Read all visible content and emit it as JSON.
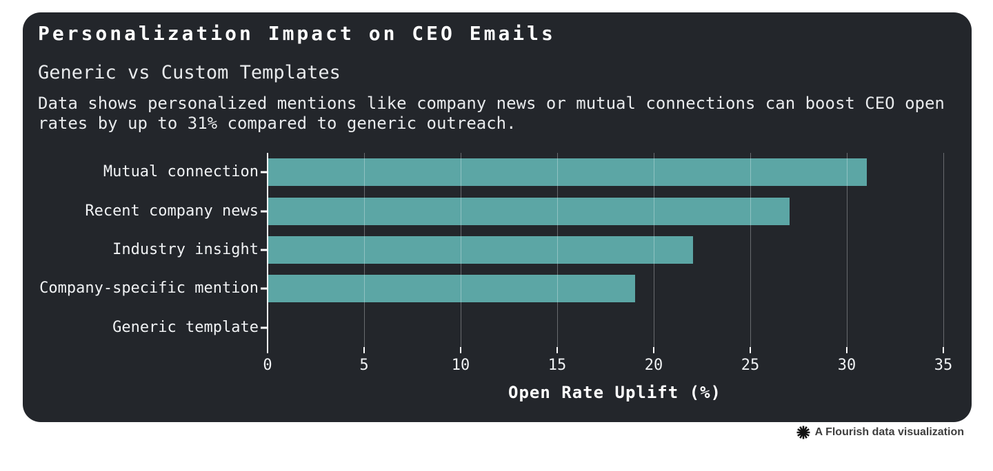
{
  "card": {
    "title": "Personalization Impact on CEO Emails",
    "subtitle": "Generic vs Custom Templates",
    "description": "Data shows personalized mentions like company news or mutual connections can boost CEO open rates by up to 31% compared to generic outreach."
  },
  "chart_data": {
    "type": "bar",
    "orientation": "horizontal",
    "title": "Personalization Impact on CEO Emails",
    "subtitle": "Generic vs Custom Templates",
    "categories": [
      "Mutual connection",
      "Recent company news",
      "Industry insight",
      "Company-specific mention",
      "Generic template"
    ],
    "values": [
      31,
      27,
      22,
      19,
      0
    ],
    "xlabel": "Open Rate Uplift (%)",
    "xlim": [
      0,
      35
    ],
    "xticks": [
      0,
      5,
      10,
      15,
      20,
      25,
      30,
      35
    ],
    "grid": true,
    "legend_position": "none",
    "bar_color": "#5CA6A5"
  },
  "colors": {
    "page_bg": "#FFFFFF",
    "card_bg": "#23262B",
    "title_text": "#FFFFFF",
    "body_text": "#E8EAEC",
    "axis_line": "#FFFFFF",
    "gridline": "rgba(255,255,255,0.32)",
    "bar": "#5CA6A5",
    "footer_text": "#3E3E3E",
    "logo": "#111111"
  },
  "footer": {
    "logo_icon": "flourish-asterisk",
    "text": "A Flourish data visualization"
  }
}
